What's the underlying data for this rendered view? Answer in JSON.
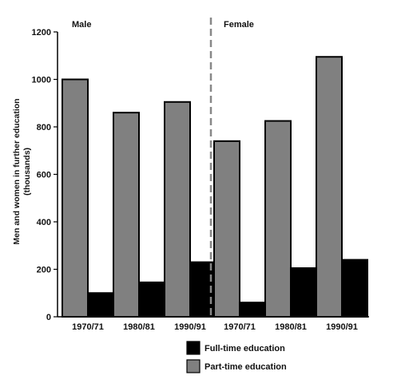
{
  "chart_data": {
    "type": "bar",
    "title": "",
    "ylabel_lines": [
      "Men and women in further education",
      "(thousands)"
    ],
    "xlabel": "",
    "ylim": [
      0,
      1200
    ],
    "yticks": [
      "0",
      "200",
      "400",
      "600",
      "800",
      "1000",
      "1200"
    ],
    "ytick_values": [
      0,
      200,
      400,
      600,
      800,
      1000,
      1200
    ],
    "groups": [
      {
        "name": "Male",
        "categories": [
          "1970/71",
          "1980/81",
          "1990/91"
        ],
        "series": [
          {
            "name": "Part-time education",
            "values": [
              1000,
              860,
              905
            ]
          },
          {
            "name": "Full-time education",
            "values": [
              100,
              145,
              230
            ]
          }
        ]
      },
      {
        "name": "Female",
        "categories": [
          "1970/71",
          "1980/81",
          "1990/91"
        ],
        "series": [
          {
            "name": "Part-time education",
            "values": [
              740,
              825,
              1095
            ]
          },
          {
            "name": "Full-time education",
            "values": [
              60,
              205,
              240
            ]
          }
        ]
      }
    ],
    "legend": {
      "placement": "bottom",
      "items": [
        {
          "label": "Full-time education",
          "color": "#000000"
        },
        {
          "label": "Part-time education",
          "color": "#808080"
        }
      ]
    },
    "colors": {
      "part_time": "#808080",
      "full_time": "#000000",
      "divider": "#888888"
    },
    "grid": false
  }
}
